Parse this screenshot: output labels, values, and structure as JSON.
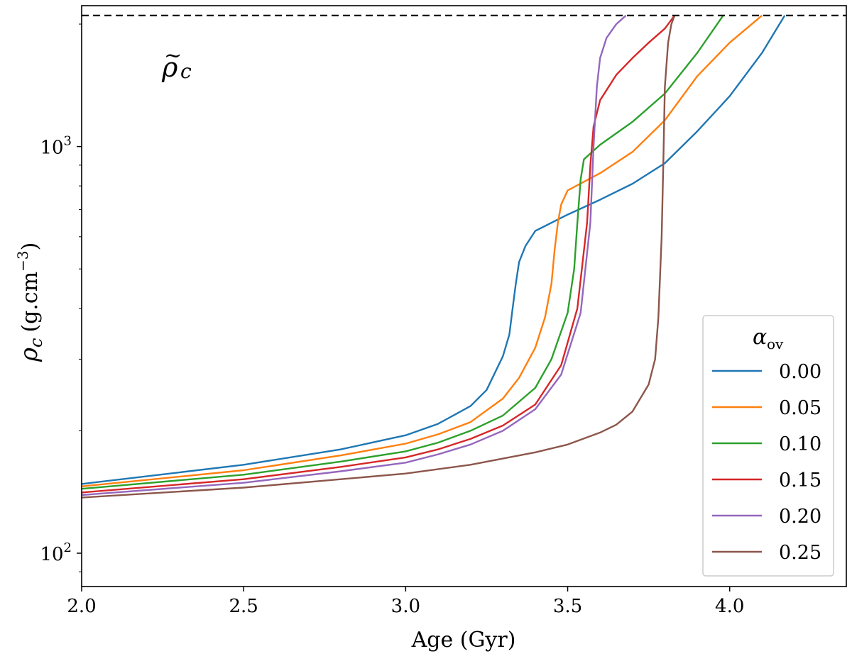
{
  "chart_data": {
    "type": "line",
    "xlabel": "Age (Gyr)",
    "ylabel": {
      "symbol": "ρ",
      "subscript": "c",
      "unit": "(g.cm",
      "exponent": "−3",
      "close": ")"
    },
    "x_ticks": [
      {
        "value": 2.0,
        "label": "2.0"
      },
      {
        "value": 2.5,
        "label": "2.5"
      },
      {
        "value": 3.0,
        "label": "3.0"
      },
      {
        "value": 3.5,
        "label": "3.5"
      },
      {
        "value": 4.0,
        "label": "4.0"
      }
    ],
    "y_ticks": [
      {
        "value": 100,
        "base": "10",
        "exp": "2"
      },
      {
        "value": 1000,
        "base": "10",
        "exp": "3"
      }
    ],
    "xlim": [
      2.0,
      4.36
    ],
    "ylim": [
      82.8,
      2220
    ],
    "yscale": "log",
    "threshold": {
      "value": 2100,
      "style": "dashed",
      "label_symbol": "ρ",
      "label_subscript": "c",
      "label_accent": "~"
    },
    "legend": {
      "title": "α",
      "title_subscript": "ov",
      "position": "bottom-right"
    },
    "series": [
      {
        "name": "0.00",
        "color": "#1f77b4",
        "x": [
          2.0,
          2.5,
          2.8,
          3.0,
          3.1,
          3.2,
          3.25,
          3.3,
          3.32,
          3.33,
          3.34,
          3.35,
          3.37,
          3.4,
          3.5,
          3.6,
          3.7,
          3.8,
          3.9,
          4.0,
          4.1,
          4.17
        ],
        "y": [
          148,
          165,
          180,
          195,
          208,
          230,
          252,
          305,
          345,
          400,
          460,
          520,
          570,
          620,
          680,
          740,
          810,
          910,
          1090,
          1330,
          1700,
          2100
        ]
      },
      {
        "name": "0.05",
        "color": "#ff7f0e",
        "x": [
          2.0,
          2.5,
          2.8,
          3.0,
          3.1,
          3.2,
          3.3,
          3.35,
          3.4,
          3.43,
          3.45,
          3.46,
          3.47,
          3.48,
          3.5,
          3.6,
          3.7,
          3.8,
          3.9,
          4.0,
          4.1
        ],
        "y": [
          146,
          160,
          174,
          186,
          196,
          210,
          240,
          270,
          320,
          380,
          460,
          560,
          650,
          720,
          780,
          860,
          970,
          1160,
          1490,
          1800,
          2100
        ]
      },
      {
        "name": "0.10",
        "color": "#2ca02c",
        "x": [
          2.0,
          2.5,
          2.8,
          3.0,
          3.1,
          3.2,
          3.3,
          3.4,
          3.45,
          3.5,
          3.52,
          3.53,
          3.54,
          3.55,
          3.6,
          3.7,
          3.8,
          3.9,
          3.98
        ],
        "y": [
          144,
          156,
          168,
          178,
          187,
          200,
          218,
          255,
          300,
          390,
          500,
          650,
          830,
          930,
          1010,
          1150,
          1350,
          1700,
          2100
        ]
      },
      {
        "name": "0.15",
        "color": "#d62728",
        "x": [
          2.0,
          2.5,
          2.8,
          3.0,
          3.1,
          3.2,
          3.3,
          3.4,
          3.48,
          3.53,
          3.56,
          3.57,
          3.58,
          3.6,
          3.65,
          3.7,
          3.75,
          3.8,
          3.83
        ],
        "y": [
          141,
          152,
          163,
          172,
          180,
          191,
          206,
          232,
          290,
          400,
          650,
          900,
          1120,
          1300,
          1500,
          1650,
          1800,
          1950,
          2100
        ]
      },
      {
        "name": "0.20",
        "color": "#9467bd",
        "x": [
          2.0,
          2.5,
          2.8,
          3.0,
          3.1,
          3.2,
          3.3,
          3.4,
          3.48,
          3.54,
          3.57,
          3.58,
          3.59,
          3.6,
          3.62,
          3.65,
          3.68
        ],
        "y": [
          139,
          149,
          159,
          167,
          175,
          185,
          200,
          226,
          275,
          390,
          650,
          1000,
          1400,
          1650,
          1850,
          2000,
          2100
        ]
      },
      {
        "name": "0.25",
        "color": "#8c564b",
        "x": [
          2.0,
          2.5,
          2.8,
          3.0,
          3.2,
          3.4,
          3.5,
          3.6,
          3.65,
          3.7,
          3.75,
          3.77,
          3.78,
          3.79,
          3.795,
          3.8,
          3.81,
          3.82,
          3.83
        ],
        "y": [
          137,
          145,
          152,
          157,
          165,
          177,
          185,
          198,
          207,
          223,
          260,
          300,
          380,
          600,
          900,
          1400,
          1800,
          2000,
          2100
        ]
      }
    ]
  }
}
